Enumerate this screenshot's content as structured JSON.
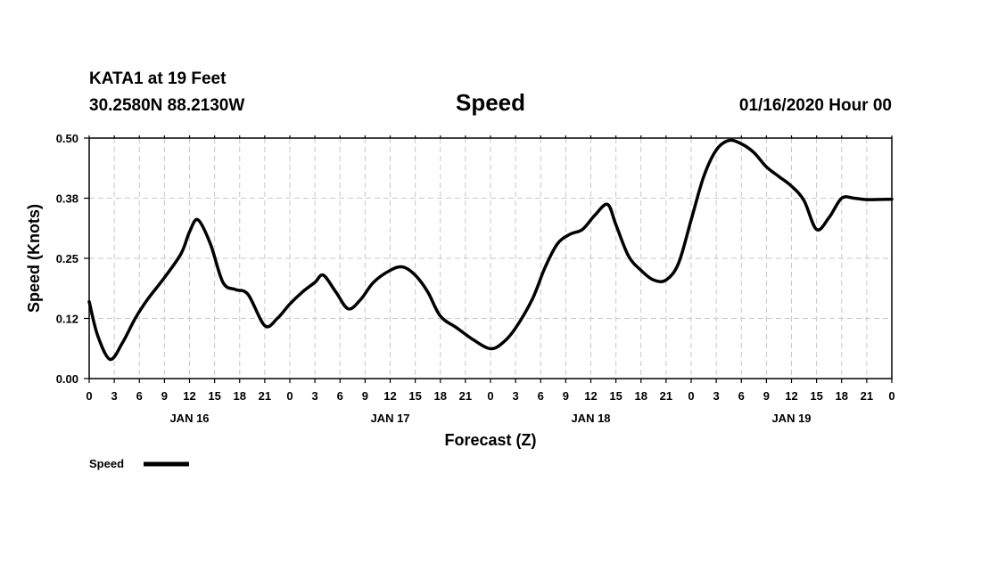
{
  "header": {
    "station": "KATA1 at 19 Feet",
    "coords": "30.2580N 88.2130W",
    "title": "Speed",
    "run": "01/16/2020 Hour 00"
  },
  "legend": {
    "label": "Speed"
  },
  "chart_data": {
    "type": "line",
    "title": "Speed",
    "xlabel": "Forecast (Z)",
    "ylabel": "Speed (Knots)",
    "ylim": [
      0,
      0.5
    ],
    "yticks": [
      "0.00",
      "0.12",
      "0.25",
      "0.38",
      "0.50"
    ],
    "xlim": [
      0,
      96
    ],
    "xticks": [
      "0",
      "3",
      "6",
      "9",
      "12",
      "15",
      "18",
      "21",
      "0",
      "3",
      "6",
      "9",
      "12",
      "15",
      "18",
      "21",
      "0",
      "3",
      "6",
      "9",
      "12",
      "15",
      "18",
      "21",
      "0",
      "3",
      "6",
      "9",
      "12",
      "15",
      "18",
      "21",
      "0"
    ],
    "day_labels": [
      "JAN 16",
      "JAN 17",
      "JAN 18",
      "JAN 19"
    ],
    "grid": true,
    "legend_position": "bottom-left",
    "series": [
      {
        "name": "Speed",
        "color": "#000000",
        "x": [
          0,
          1,
          2.5,
          4,
          5.5,
          7,
          9,
          11,
          12,
          13,
          14.5,
          16,
          17.5,
          19,
          21,
          22.5,
          24,
          25.5,
          27,
          28,
          29.5,
          31,
          32.5,
          34,
          36,
          37.5,
          39,
          40.5,
          42,
          44,
          46,
          48,
          49.5,
          51,
          53,
          54.5,
          56,
          57.5,
          59,
          60.5,
          62,
          63,
          64.5,
          66,
          67.5,
          69,
          70.5,
          72,
          73.5,
          75,
          76.5,
          78,
          79.5,
          81,
          82.5,
          84,
          85.5,
          87,
          88.5,
          90,
          91.5,
          93,
          96
        ],
        "y": [
          0.16,
          0.09,
          0.04,
          0.075,
          0.125,
          0.165,
          0.21,
          0.26,
          0.305,
          0.33,
          0.28,
          0.2,
          0.185,
          0.175,
          0.11,
          0.125,
          0.155,
          0.18,
          0.2,
          0.215,
          0.18,
          0.145,
          0.165,
          0.2,
          0.225,
          0.232,
          0.215,
          0.18,
          0.13,
          0.105,
          0.08,
          0.062,
          0.075,
          0.105,
          0.165,
          0.23,
          0.28,
          0.3,
          0.31,
          0.34,
          0.362,
          0.32,
          0.255,
          0.225,
          0.205,
          0.205,
          0.24,
          0.33,
          0.42,
          0.475,
          0.495,
          0.488,
          0.47,
          0.44,
          0.42,
          0.4,
          0.37,
          0.31,
          0.335,
          0.375,
          0.375,
          0.372,
          0.373
        ]
      }
    ]
  }
}
